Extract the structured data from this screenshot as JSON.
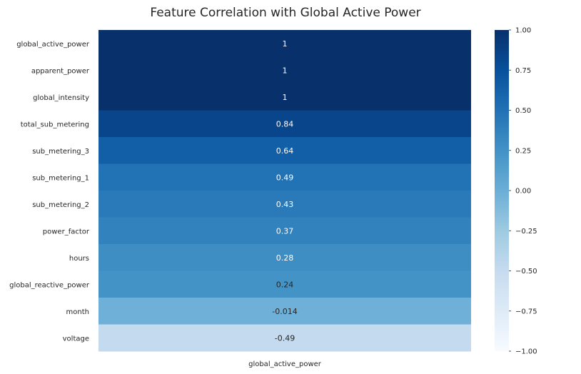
{
  "chart_data": {
    "type": "heatmap",
    "title": "Feature Correlation with Global Active Power",
    "columns": [
      "global_active_power"
    ],
    "rows": [
      "global_active_power",
      "apparent_power",
      "global_intensity",
      "total_sub_metering",
      "sub_metering_3",
      "sub_metering_1",
      "sub_metering_2",
      "power_factor",
      "hours",
      "global_reactive_power",
      "month",
      "voltage"
    ],
    "values": [
      1,
      1,
      1,
      0.84,
      0.64,
      0.49,
      0.43,
      0.37,
      0.28,
      0.24,
      -0.014,
      -0.49
    ],
    "value_labels": [
      "1",
      "1",
      "1",
      "0.84",
      "0.64",
      "0.49",
      "0.43",
      "0.37",
      "0.28",
      "0.24",
      "-0.014",
      "-0.49"
    ],
    "colormap": "Blues",
    "vmin": -1,
    "vmax": 1,
    "colorbar_ticks": [
      1.0,
      0.75,
      0.5,
      0.25,
      0.0,
      -0.25,
      -0.5,
      -0.75,
      -1.0
    ],
    "colorbar_tick_labels": [
      "1.00",
      "0.75",
      "0.50",
      "0.25",
      "0.00",
      "−0.25",
      "−0.50",
      "−0.75",
      "−1.00"
    ]
  }
}
